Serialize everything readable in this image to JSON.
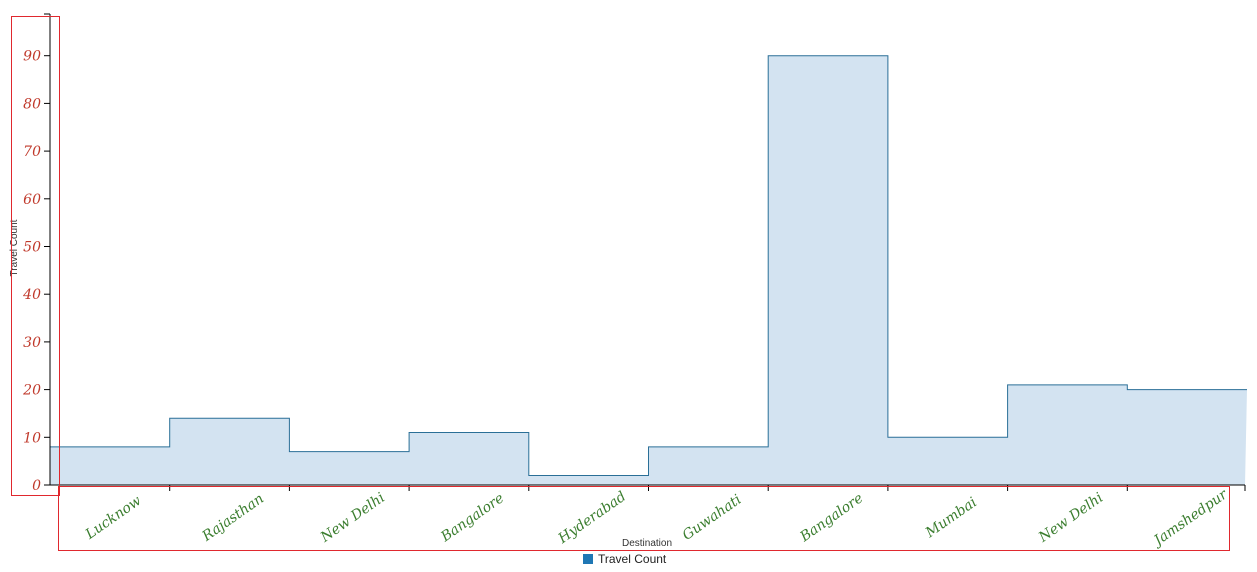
{
  "chart_data": {
    "type": "area",
    "interpolation": "step",
    "categories": [
      "Lucknow",
      "Rajasthan",
      "New Delhi",
      "Bangalore",
      "Hyderabad",
      "Guwahati",
      "Bangalore",
      "Mumbai",
      "New Delhi",
      "Jamshedpur"
    ],
    "series": [
      {
        "name": "Travel Count",
        "values": [
          8,
          14,
          7,
          11,
          2,
          8,
          90,
          10,
          21,
          20
        ]
      }
    ],
    "title": "",
    "xlabel": "Destination",
    "ylabel": "Travel Count",
    "ylim": [
      0,
      100
    ],
    "yticks": [
      0,
      10,
      20,
      30,
      40,
      50,
      60,
      70,
      80,
      90
    ],
    "grid": false,
    "legend_position": "bottom-center",
    "colors": {
      "fill": "#d3e3f1",
      "stroke": "#2a6f97",
      "legend_swatch": "#1f77b4",
      "ytick_text": "#c0392b",
      "xtick_text": "#3a7d2e",
      "highlight_box": "#e0282e"
    }
  }
}
